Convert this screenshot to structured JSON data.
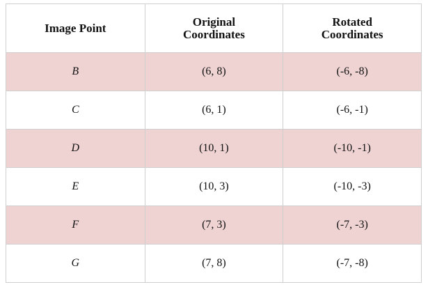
{
  "table": {
    "header": [
      "Image Point",
      "Original Coordinates",
      "Rotated Coordinates"
    ],
    "rows": [
      [
        "B",
        "(6, 8)",
        "(-6, -8)"
      ],
      [
        "C",
        "(6, 1)",
        "(-6, -1)"
      ],
      [
        "D",
        "(10, 1)",
        "(-10, -1)"
      ],
      [
        "E",
        "(10, 3)",
        "(-10, -3)"
      ],
      [
        "F",
        "(7, 3)",
        "(-7, -3)"
      ],
      [
        "G",
        "(7, 8)",
        "(-7, -8)"
      ]
    ]
  }
}
